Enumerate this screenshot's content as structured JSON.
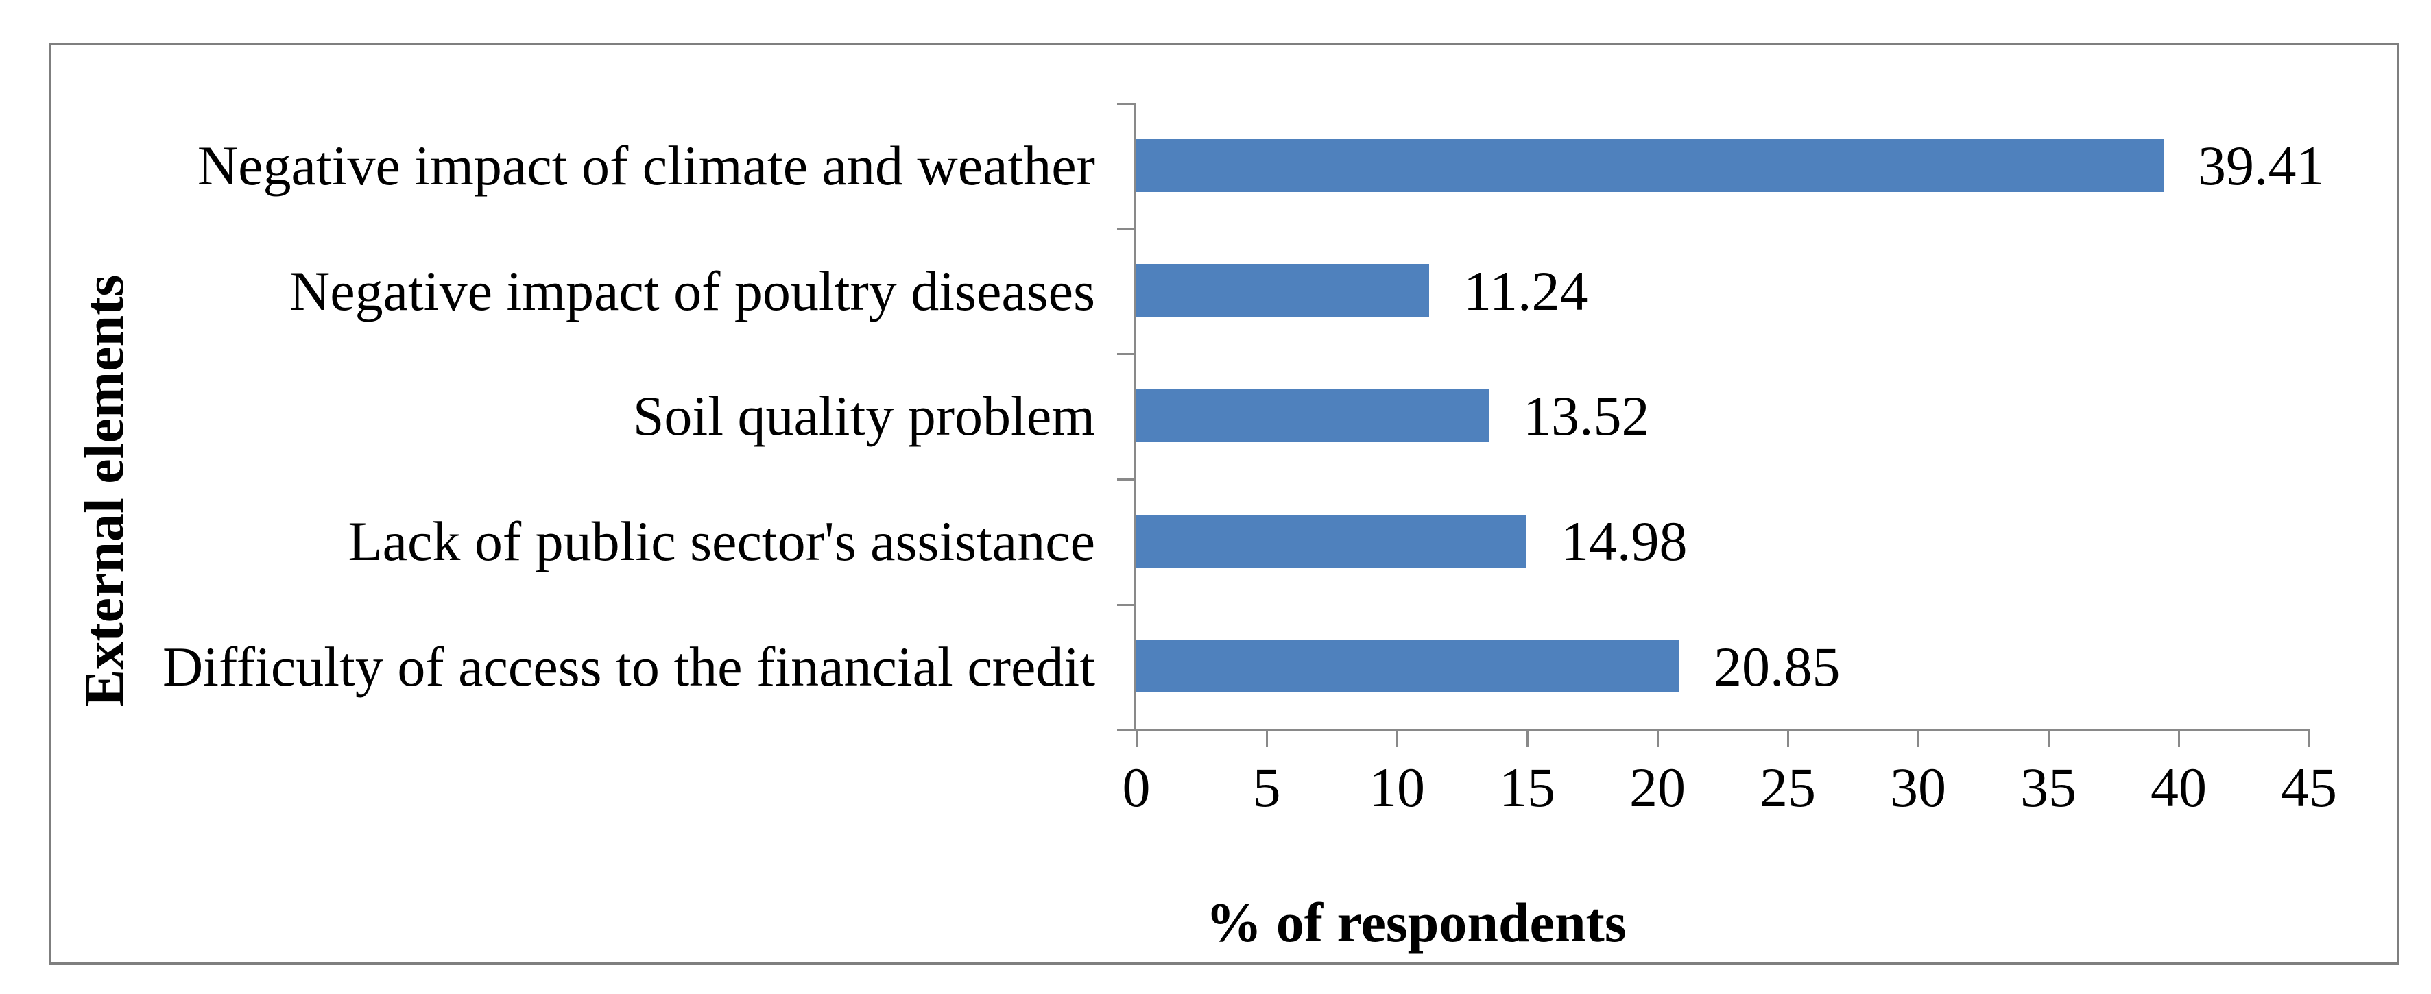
{
  "chart_data": {
    "type": "bar",
    "orientation": "horizontal",
    "title": "",
    "categories": [
      "Negative impact of climate and weather",
      "Negative impact of poultry diseases",
      "Soil quality problem",
      "Lack of public sector's assistance",
      "Difficulty of access to the financial credit"
    ],
    "values": [
      39.41,
      11.24,
      13.52,
      14.98,
      20.85
    ],
    "value_labels": [
      "39.41",
      "11.24",
      "13.52",
      "14.98",
      "20.85"
    ],
    "xlabel": "% of respondents",
    "ylabel": "External elements",
    "xlim": [
      0,
      45
    ],
    "xticks": [
      0,
      5,
      10,
      15,
      20,
      25,
      30,
      35,
      40,
      45
    ],
    "grid": false,
    "legend": false,
    "bar_color": "#4f81bd",
    "axis_color": "#898989",
    "border_color": "#7f7f7f",
    "label_color": "#000000"
  }
}
